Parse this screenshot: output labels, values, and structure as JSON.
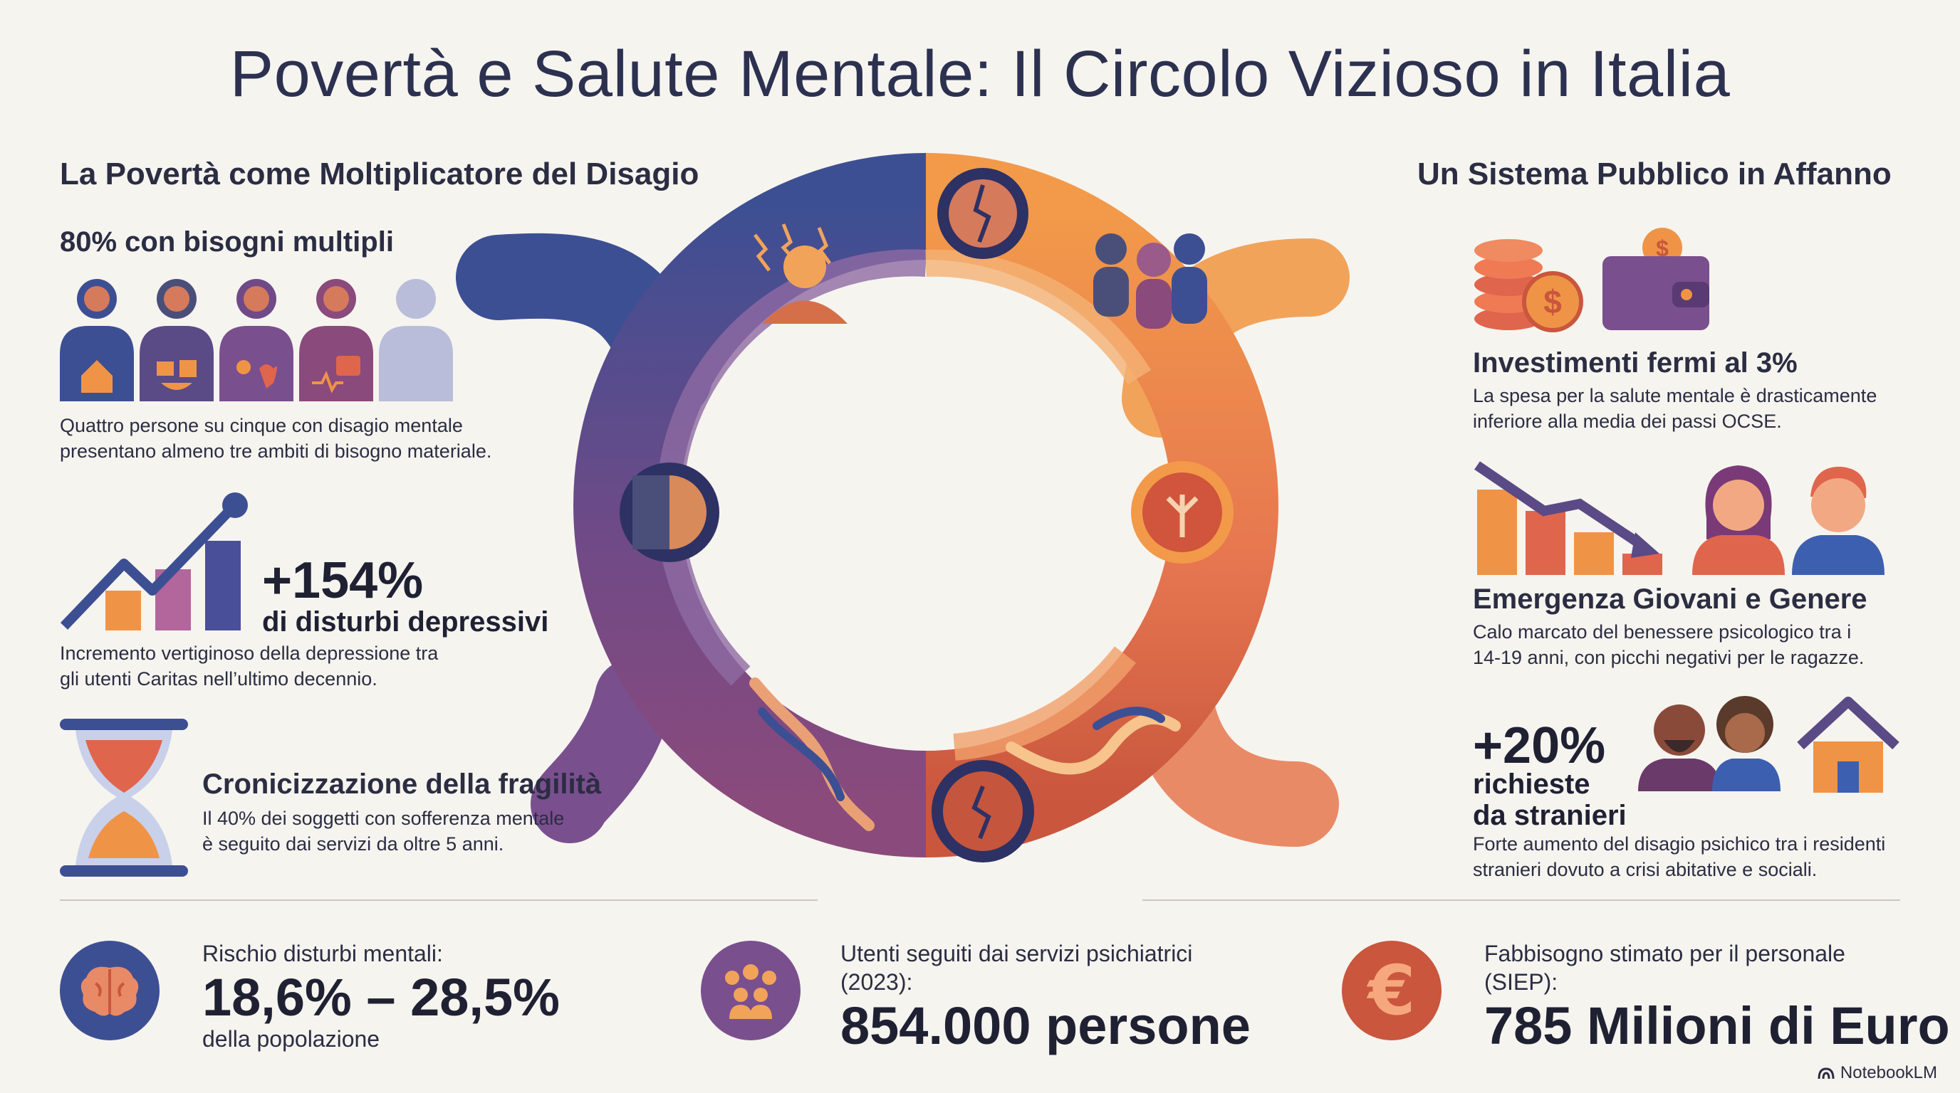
{
  "title": "Povertà e Salute Mentale: Il Circolo Vizioso in Italia",
  "left": {
    "section_title": "La Povertà come Moltiplicatore del Disagio",
    "multi_needs": {
      "heading": "80% con bisogni multipli",
      "text_line1": "Quattro persone su cinque con disagio mentale",
      "text_line2": "presentano almeno tre ambiti di bisogno materiale.",
      "icons": [
        "house-icon",
        "food-icon",
        "health-icon",
        "medical-kit-icon"
      ]
    },
    "depression": {
      "value": "+154%",
      "label": "di disturbi depressivi",
      "text_line1": "Incremento vertiginoso della depressione tra",
      "text_line2": "gli utenti Caritas nell’ultimo decennio."
    },
    "chronic": {
      "heading": "Cronicizzazione della fragilità",
      "text_line1": "Il 40% dei soggetti con sofferenza mentale",
      "text_line2": "è seguito dai servizi da oltre 5 anni."
    }
  },
  "right": {
    "section_title": "Un Sistema Pubblico in Affanno",
    "investment": {
      "heading": "Investimenti fermi al 3%",
      "text_line1": "La spesa per la salute mentale è drasticamente",
      "text_line2": "inferiore alla media dei passi OCSE."
    },
    "youth": {
      "heading": "Emergenza Giovani e Genere",
      "text_line1": "Calo marcato del benessere psicologico tra i",
      "text_line2": "14-19 anni, con picchi negativi per le ragazze."
    },
    "foreigners": {
      "value": "+20%",
      "label_line1": "richieste",
      "label_line2": "da stranieri",
      "text_line1": "Forte aumento del disagio psichico tra i residenti",
      "text_line2": "stranieri dovuto a crisi abitative e sociali."
    }
  },
  "bottom": {
    "risk": {
      "label": "Rischio disturbi mentali:",
      "value": "18,6% – 28,5%",
      "sub": "della popolazione"
    },
    "users": {
      "label_line1": "Utenti seguiti dai servizi psichiatrici",
      "label_line2": "(2023):",
      "value": "854.000 persone"
    },
    "needs": {
      "label_line1": "Fabbisogno stimato per il personale",
      "label_line2": "(SIEP):",
      "value": "785 Milioni di Euro",
      "currency_symbol": "€"
    }
  },
  "watermark": "NotebookLM",
  "colors": {
    "navy": "#3d4f93",
    "purple": "#6f4a87",
    "orange": "#ef9447",
    "coral": "#e0654d",
    "brick": "#c9563d"
  }
}
